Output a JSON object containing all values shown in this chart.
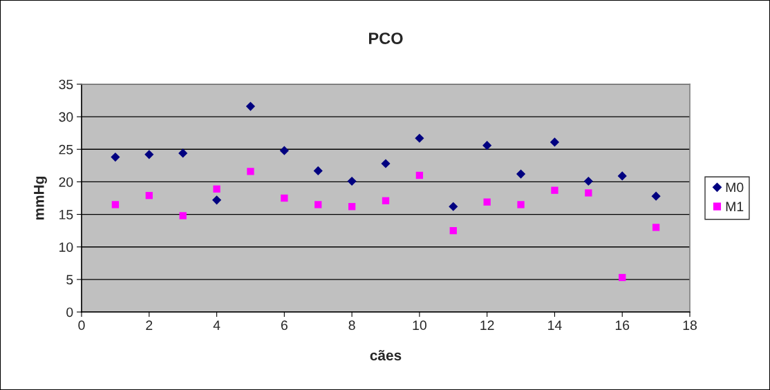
{
  "chart_data": {
    "type": "scatter",
    "title": "PCO",
    "xlabel": "cães",
    "ylabel": "mmHg",
    "x": [
      1,
      2,
      3,
      4,
      5,
      6,
      7,
      8,
      9,
      10,
      11,
      12,
      13,
      14,
      15,
      16,
      17
    ],
    "series": [
      {
        "name": "M0",
        "color": "#000080",
        "marker": "diamond",
        "values": [
          23.8,
          24.2,
          24.4,
          17.2,
          31.6,
          24.8,
          21.7,
          20.1,
          22.8,
          26.7,
          16.2,
          25.6,
          21.2,
          26.1,
          20.1,
          20.9,
          17.8
        ]
      },
      {
        "name": "M1",
        "color": "#ff00ff",
        "marker": "square",
        "values": [
          16.5,
          17.9,
          14.8,
          18.9,
          21.6,
          17.5,
          16.5,
          16.2,
          17.1,
          21.0,
          12.5,
          16.9,
          16.5,
          18.7,
          18.3,
          5.3,
          13.0
        ]
      }
    ],
    "xlim": [
      0,
      18
    ],
    "xticks": [
      0,
      2,
      4,
      6,
      8,
      10,
      12,
      14,
      16,
      18
    ],
    "ylim": [
      0,
      35
    ],
    "yticks": [
      0,
      5,
      10,
      15,
      20,
      25,
      30,
      35
    ],
    "grid": "y",
    "legend": "right"
  }
}
